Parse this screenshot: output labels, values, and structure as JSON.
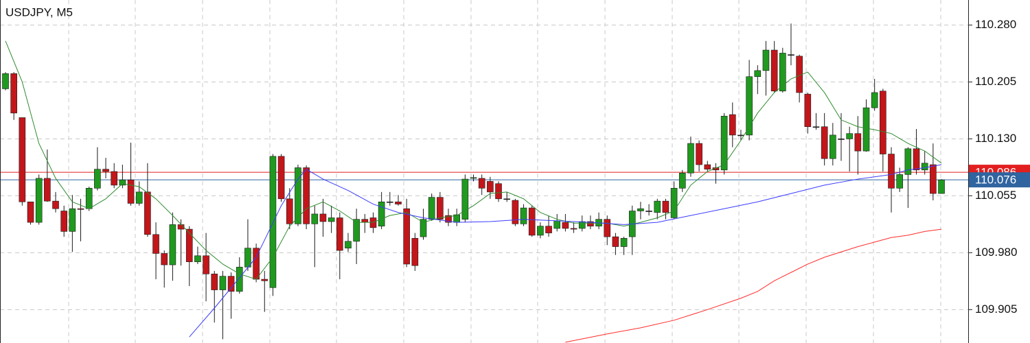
{
  "chart_data": {
    "type": "candlestick",
    "title": "USDJPY, M5",
    "up_color": "#1f9a1f",
    "down_color": "#c3161b",
    "ylim": [
      109.861,
      110.313
    ],
    "yticks": [
      {
        "value": 109.905,
        "label": "109.905"
      },
      {
        "value": 109.98,
        "label": "109.980"
      },
      {
        "value": 110.055,
        "label": "110.055"
      },
      {
        "value": 110.13,
        "label": "110.130"
      },
      {
        "value": 110.205,
        "label": "110.205"
      },
      {
        "value": 110.28,
        "label": "110.280"
      }
    ],
    "grid": true,
    "open": [
      110.196,
      110.216,
      110.158,
      110.047,
      110.02,
      110.078,
      110.048,
      110.035,
      110.008,
      110.038,
      110.038,
      110.065,
      110.09,
      110.087,
      110.069,
      110.076,
      110.045,
      110.06,
      110.004,
      109.979,
      109.964,
      110.017,
      110.011,
      109.968,
      109.976,
      109.952,
      109.931,
      109.949,
      109.929,
      109.961,
      109.986,
      109.945,
      109.934,
      110.107,
      110.051,
      110.018,
      110.092,
      110.018,
      110.031,
      110.021,
      110.026,
      109.986,
      109.995,
      110.024,
      110.026,
      110.015,
      110.047,
      110.047,
      110.038,
      109.999,
      110.001,
      110.024,
      110.053,
      110.029,
      110.02,
      110.024,
      110.078,
      110.078,
      110.074,
      110.071,
      110.051,
      110.049,
      110.018,
      110.039,
      110.003,
      110.015,
      110.012,
      110.02,
      110.012,
      110.012,
      110.021,
      110.015,
      110.024,
      110.001,
      109.988,
      110.001,
      110.035,
      110.035,
      110.033,
      110.048,
      110.026,
      110.065,
      110.085,
      110.124,
      110.096,
      110.092,
      110.089,
      110.162,
      110.135,
      110.135,
      110.212,
      110.22,
      110.247,
      110.193,
      110.241,
      110.239,
      110.189,
      110.146,
      110.146,
      110.104,
      110.13,
      110.13,
      110.137,
      110.114,
      110.171,
      110.193,
      110.11,
      110.065,
      110.083,
      110.117,
      110.089,
      110.096,
      110.058
    ],
    "high": [
      110.218,
      110.218,
      110.158,
      110.047,
      110.083,
      110.116,
      110.06,
      110.042,
      110.056,
      110.051,
      110.067,
      110.119,
      110.105,
      110.098,
      110.096,
      110.125,
      110.074,
      110.098,
      110.02,
      109.983,
      110.033,
      110.024,
      110.015,
      109.988,
      110.006,
      109.956,
      109.956,
      109.954,
      109.974,
      110.024,
      109.992,
      109.956,
      110.11,
      110.11,
      110.065,
      110.096,
      110.095,
      110.042,
      110.051,
      110.042,
      110.033,
      110.006,
      110.038,
      110.031,
      110.033,
      110.06,
      110.06,
      110.056,
      110.051,
      110.006,
      110.038,
      110.058,
      110.06,
      110.038,
      110.038,
      110.083,
      110.083,
      110.083,
      110.08,
      110.074,
      110.06,
      110.051,
      110.044,
      110.042,
      110.02,
      110.029,
      110.031,
      110.031,
      110.02,
      110.029,
      110.029,
      110.033,
      110.029,
      110.006,
      110.001,
      110.042,
      110.047,
      110.044,
      110.051,
      110.051,
      110.074,
      110.089,
      110.133,
      110.128,
      110.101,
      110.098,
      110.164,
      110.178,
      110.142,
      110.234,
      110.227,
      110.259,
      110.259,
      110.25,
      110.282,
      110.241,
      110.191,
      110.164,
      110.164,
      110.151,
      110.164,
      110.146,
      110.16,
      110.182,
      110.209,
      110.196,
      110.119,
      110.092,
      110.119,
      110.143,
      110.114,
      110.124,
      110.077
    ],
    "low": [
      110.194,
      110.155,
      110.042,
      110.017,
      110.017,
      110.047,
      110.033,
      110.001,
      109.981,
      109.995,
      110.035,
      110.062,
      110.078,
      110.065,
      110.065,
      110.042,
      110.042,
      110.001,
      109.945,
      109.934,
      109.943,
      109.963,
      109.936,
      109.965,
      109.916,
      109.888,
      109.866,
      109.893,
      109.926,
      109.956,
      109.941,
      109.902,
      109.923,
      110.047,
      110.011,
      110.015,
      110.011,
      109.961,
      110.001,
      110.006,
      109.945,
      109.981,
      109.965,
      110.006,
      110.006,
      110.011,
      110.042,
      110.042,
      109.961,
      109.956,
      109.997,
      110.022,
      110.02,
      110.015,
      110.015,
      110.02,
      110.074,
      110.056,
      110.051,
      110.047,
      110.047,
      110.015,
      110.015,
      110.001,
      109.999,
      110.001,
      110.008,
      110.008,
      110.006,
      110.008,
      110.011,
      110.011,
      109.99,
      109.977,
      109.977,
      109.977,
      110.024,
      110.029,
      110.024,
      110.024,
      110.024,
      110.06,
      110.08,
      110.087,
      110.087,
      110.071,
      110.083,
      110.119,
      110.128,
      110.128,
      110.189,
      110.187,
      110.191,
      110.191,
      110.227,
      110.178,
      110.137,
      110.142,
      110.095,
      110.095,
      110.101,
      110.087,
      110.083,
      110.113,
      110.167,
      110.087,
      110.033,
      110.06,
      110.039,
      110.083,
      110.083,
      110.049,
      110.058
    ],
    "close": [
      110.216,
      110.164,
      110.047,
      110.02,
      110.078,
      110.048,
      110.038,
      110.008,
      110.038,
      110.037,
      110.065,
      110.09,
      110.087,
      110.069,
      110.076,
      110.045,
      110.06,
      110.004,
      109.979,
      109.964,
      110.017,
      110.011,
      109.968,
      109.976,
      109.952,
      109.931,
      109.949,
      109.929,
      109.961,
      109.986,
      109.945,
      109.943,
      110.107,
      110.051,
      110.018,
      110.092,
      110.018,
      110.031,
      110.021,
      110.026,
      109.983,
      109.995,
      110.024,
      110.02,
      110.013,
      110.047,
      110.047,
      110.044,
      109.965,
      109.963,
      110.024,
      110.053,
      110.024,
      110.02,
      110.03,
      110.077,
      110.079,
      110.065,
      110.06,
      110.051,
      110.051,
      110.018,
      110.039,
      110.003,
      110.015,
      110.006,
      110.022,
      110.012,
      110.011,
      110.021,
      110.015,
      110.024,
      110.001,
      109.988,
      109.999,
      110.035,
      110.038,
      110.035,
      110.048,
      110.033,
      110.065,
      110.085,
      110.124,
      110.096,
      110.09,
      110.089,
      110.16,
      110.135,
      110.135,
      110.212,
      110.22,
      110.247,
      110.193,
      110.243,
      110.241,
      110.191,
      110.146,
      110.146,
      110.104,
      110.135,
      110.13,
      110.137,
      110.114,
      110.171,
      110.191,
      110.11,
      110.065,
      110.083,
      110.117,
      110.089,
      110.098,
      110.058,
      110.076
    ],
    "series": [
      {
        "color": "#2e8b2e",
        "x": [
          0,
          2,
          4,
          6,
          8,
          10,
          12,
          14,
          16,
          18,
          20,
          22,
          24,
          26,
          28,
          30,
          32,
          34,
          36,
          38,
          40,
          42,
          44,
          46,
          48,
          50,
          52,
          54,
          56,
          58,
          60,
          62,
          64,
          66,
          68,
          70,
          72,
          74,
          76,
          78,
          80,
          82,
          84,
          86,
          88,
          90,
          92,
          94,
          96,
          98,
          100,
          102,
          104,
          106,
          108,
          110,
          112
        ],
        "values": [
          110.259,
          110.205,
          110.124,
          110.078,
          110.047,
          110.038,
          110.051,
          110.071,
          110.067,
          110.051,
          110.029,
          110.006,
          109.983,
          109.965,
          109.952,
          109.945,
          109.974,
          110.015,
          110.038,
          110.047,
          110.035,
          110.02,
          110.02,
          110.029,
          110.033,
          110.02,
          110.026,
          110.029,
          110.042,
          110.058,
          110.06,
          110.051,
          110.033,
          110.024,
          110.019,
          110.019,
          110.019,
          110.015,
          110.02,
          110.026,
          110.035,
          110.069,
          110.087,
          110.096,
          110.128,
          110.164,
          110.191,
          110.209,
          110.218,
          110.191,
          110.155,
          110.146,
          110.142,
          110.137,
          110.124,
          110.114,
          110.098
        ]
      },
      {
        "color": "#3b3bff",
        "x": [
          22,
          25,
          28,
          30,
          33,
          35,
          36,
          38,
          41,
          44,
          47,
          50,
          54,
          58,
          62,
          66,
          70,
          74,
          78,
          82,
          86,
          90,
          94,
          98,
          102,
          106,
          108,
          110,
          112
        ],
        "values": [
          109.869,
          109.907,
          109.947,
          109.974,
          110.042,
          110.077,
          110.09,
          110.077,
          110.062,
          110.044,
          110.033,
          110.026,
          110.02,
          110.021,
          110.024,
          110.022,
          110.02,
          110.017,
          110.02,
          110.029,
          110.038,
          110.047,
          110.058,
          110.069,
          110.077,
          110.083,
          110.089,
          110.092,
          110.096
        ]
      },
      {
        "color": "#ff2a2a",
        "x": [
          67,
          72,
          76,
          80,
          84,
          88,
          90,
          92,
          94,
          96,
          98,
          100,
          102,
          104,
          106,
          108,
          110,
          112
        ],
        "values": [
          109.862,
          109.873,
          109.881,
          109.891,
          109.905,
          109.92,
          109.929,
          109.943,
          109.954,
          109.965,
          109.974,
          109.981,
          109.988,
          109.994,
          110.0,
          110.003,
          110.008,
          110.011
        ]
      }
    ],
    "price_lines": [
      {
        "value": 110.086,
        "color": "#e21f1f"
      },
      {
        "value": 110.076,
        "color": "#2f64a0"
      }
    ]
  }
}
